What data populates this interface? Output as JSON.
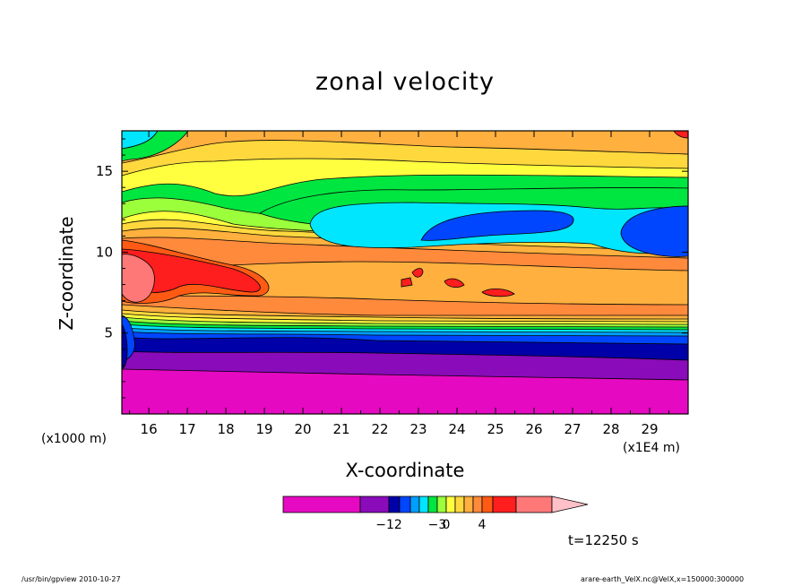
{
  "chart_data": {
    "type": "heatmap",
    "title": "zonal velocity",
    "xlabel": "X-coordinate",
    "ylabel": "Z-coordinate",
    "x_unit": "(x1E4 m)",
    "y_unit": "(x1000 m)",
    "xlim": [
      15.3,
      30.0
    ],
    "ylim": [
      0,
      17.5
    ],
    "x_ticks": [
      16,
      17,
      18,
      19,
      20,
      21,
      22,
      23,
      24,
      25,
      26,
      27,
      28,
      29
    ],
    "x_tick_labels": [
      "16",
      "17",
      "18",
      "19",
      "20",
      "21",
      "22",
      "23",
      "24",
      "25",
      "26",
      "27",
      "28",
      "29"
    ],
    "y_ticks": [
      5,
      10,
      15
    ],
    "y_tick_labels": [
      "5",
      "10",
      "15"
    ],
    "colorbar": {
      "colors": [
        "#e609c2",
        "#8a0bba",
        "#0000a8",
        "#0046ff",
        "#009eff",
        "#00e6ff",
        "#00e640",
        "#9bff3c",
        "#ffff40",
        "#ffd83e",
        "#ffb03e",
        "#ff8a3c",
        "#ff5a14",
        "#ff1e1e",
        "#ff7878",
        "#ffc0c8"
      ],
      "labels": [
        {
          "text": "−12",
          "index": 2
        },
        {
          "text": "−3",
          "index": 7
        },
        {
          "text": "0",
          "index": 8
        },
        {
          "text": "4",
          "index": 12
        }
      ]
    },
    "time_label": "t=12250 s"
  },
  "footer": {
    "left": "/usr/bin/gpview   2010-10-27",
    "right": "arare-earth_VelX.nc@VelX,x=150000:300000"
  }
}
